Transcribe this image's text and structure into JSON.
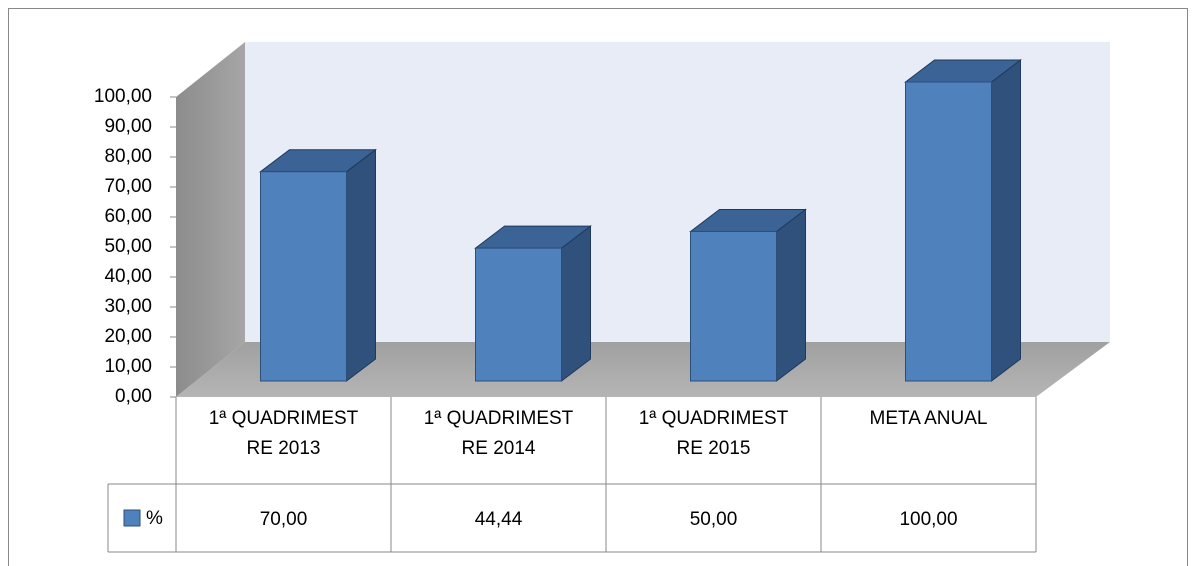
{
  "chart_data": {
    "type": "bar3d",
    "categories": [
      "1ª QUADRIMESTRE 2013",
      "1ª QUADRIMESTRE 2014",
      "1ª QUADRIMESTRE 2015",
      "META ANUAL"
    ],
    "series": [
      {
        "name": "%",
        "color": "#4f81bd",
        "values": [
          70,
          44.44,
          50,
          100
        ],
        "value_labels": [
          "70,00",
          "44,44",
          "50,00",
          "100,00"
        ]
      }
    ],
    "ylim": [
      0,
      100
    ],
    "yticks": [
      {
        "value": 0,
        "label": "0,00"
      },
      {
        "value": 10,
        "label": "10,00"
      },
      {
        "value": 20,
        "label": "20,00"
      },
      {
        "value": 30,
        "label": "30,00"
      },
      {
        "value": 40,
        "label": "40,00"
      },
      {
        "value": 50,
        "label": "50,00"
      },
      {
        "value": 60,
        "label": "60,00"
      },
      {
        "value": 70,
        "label": "70,00"
      },
      {
        "value": 80,
        "label": "80,00"
      },
      {
        "value": 90,
        "label": "90,00"
      },
      {
        "value": 100,
        "label": "100,00"
      }
    ],
    "legend": "table"
  }
}
